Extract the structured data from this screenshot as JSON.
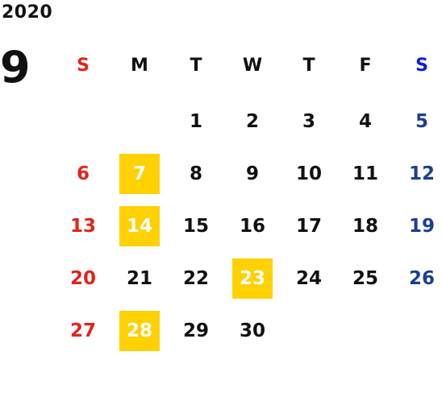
{
  "calendar": {
    "year": "2020",
    "month": "9",
    "weekdays": [
      "S",
      "M",
      "T",
      "W",
      "T",
      "F",
      "S"
    ],
    "first_weekday_index": 2,
    "days_in_month": 30,
    "highlighted_days": [
      7,
      14,
      23,
      28
    ],
    "colors": {
      "sunday": "#e3231a",
      "saturday": "#1c3f94",
      "saturday_header": "#0a1fd6",
      "highlight_bg": "#ffd100",
      "highlight_text": "#ffffff",
      "default_text": "#111111"
    },
    "days": [
      "1",
      "2",
      "3",
      "4",
      "5",
      "6",
      "7",
      "8",
      "9",
      "10",
      "11",
      "12",
      "13",
      "14",
      "15",
      "16",
      "17",
      "18",
      "19",
      "20",
      "21",
      "22",
      "23",
      "24",
      "25",
      "26",
      "27",
      "28",
      "29",
      "30"
    ]
  }
}
